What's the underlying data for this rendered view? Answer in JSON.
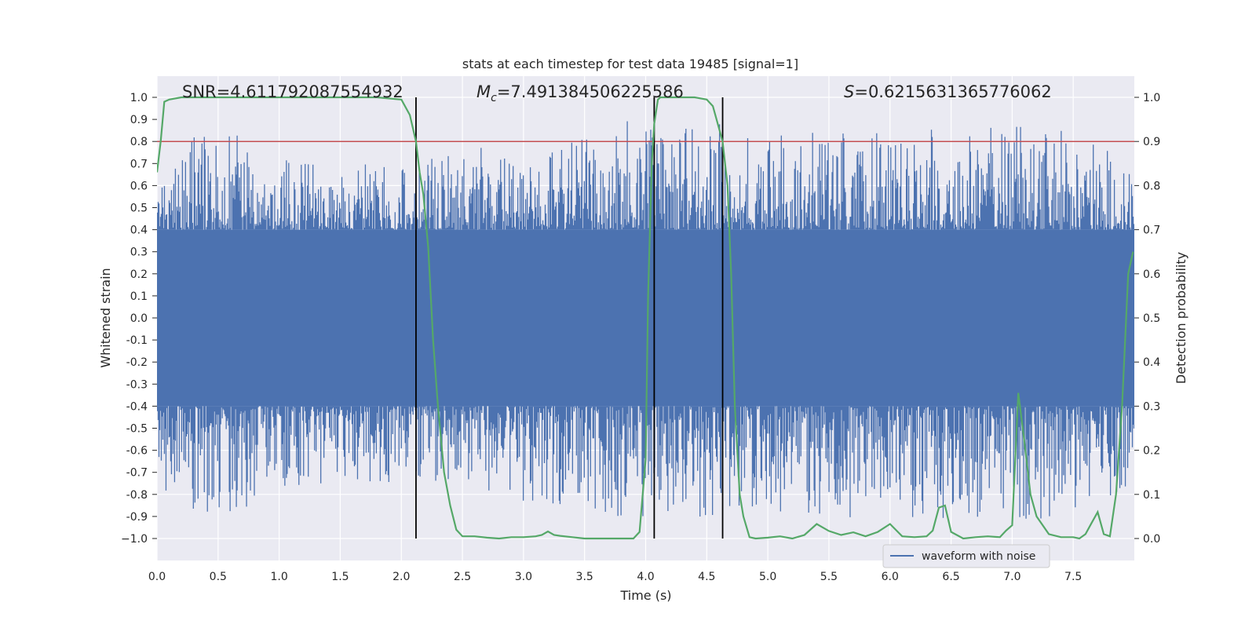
{
  "chart_data": {
    "type": "line",
    "title": "stats at each timestep for test data 19485 [signal=1]",
    "xlabel": "Time (s)",
    "ylabel": "Whitened strain",
    "ylabel_right": "Detection probability",
    "xlim": [
      0.0,
      8.0
    ],
    "ylim": [
      -1.1,
      1.1
    ],
    "ylim_right": [
      -0.05,
      1.05
    ],
    "x_ticks": [
      "0.0",
      "0.5",
      "1.0",
      "1.5",
      "2.0",
      "2.5",
      "3.0",
      "3.5",
      "4.0",
      "4.5",
      "5.0",
      "5.5",
      "6.0",
      "6.5",
      "7.0",
      "7.5"
    ],
    "y_ticks": [
      "1.0",
      "0.9",
      "0.8",
      "0.7",
      "0.6",
      "0.5",
      "0.4",
      "0.3",
      "0.2",
      "0.1",
      "0.0",
      "-0.1",
      "-0.2",
      "-0.3",
      "-0.4",
      "-0.5",
      "-0.6",
      "-0.7",
      "-0.8",
      "-0.9",
      "−1.0"
    ],
    "y_ticks_right": [
      "1.0",
      "0.9",
      "0.8",
      "0.7",
      "0.6",
      "0.5",
      "0.4",
      "0.3",
      "0.2",
      "0.1",
      "0.0"
    ],
    "grid": true,
    "annotations": {
      "snr": "SNR=4.611792087554932",
      "mc_symbol": "M",
      "mc_sub": "c",
      "mc_value": "=7.491384506225586",
      "s_symbol": "S",
      "s_value": "=0.6215631365776062"
    },
    "legend": {
      "label": "waveform with noise",
      "position": "lower-right"
    },
    "threshold": {
      "probability": 0.9,
      "color": "#c44e52"
    },
    "event_boundaries": [
      2.12,
      4.07,
      4.63
    ],
    "series": [
      {
        "name": "waveform with noise",
        "axis": "left",
        "color": "#4c72b0",
        "style": "dense_noise",
        "core_amplitude": 0.4,
        "peak_envelope": [
          [
            0.0,
            0.6
          ],
          [
            0.3,
            0.82
          ],
          [
            0.6,
            0.85
          ],
          [
            1.0,
            0.72
          ],
          [
            1.5,
            0.7
          ],
          [
            2.0,
            0.7
          ],
          [
            2.5,
            0.75
          ],
          [
            3.0,
            0.78
          ],
          [
            3.5,
            0.82
          ],
          [
            4.0,
            0.88
          ],
          [
            4.5,
            0.85
          ],
          [
            5.0,
            0.82
          ],
          [
            5.5,
            0.86
          ],
          [
            6.0,
            0.85
          ],
          [
            6.5,
            0.86
          ],
          [
            7.0,
            0.88
          ],
          [
            7.5,
            0.84
          ],
          [
            8.0,
            0.7
          ]
        ]
      },
      {
        "name": "Detection probability",
        "axis": "right",
        "color": "#55a868",
        "x": [
          0.0,
          0.03,
          0.06,
          0.1,
          0.2,
          0.5,
          1.0,
          1.5,
          1.8,
          2.0,
          2.07,
          2.12,
          2.15,
          2.18,
          2.22,
          2.26,
          2.3,
          2.35,
          2.4,
          2.45,
          2.5,
          2.6,
          2.7,
          2.8,
          2.9,
          3.0,
          3.1,
          3.15,
          3.2,
          3.25,
          3.3,
          3.4,
          3.5,
          3.6,
          3.7,
          3.8,
          3.9,
          3.95,
          4.0,
          4.02,
          4.05,
          4.07,
          4.1,
          4.12,
          4.15,
          4.2,
          4.3,
          4.4,
          4.5,
          4.55,
          4.6,
          4.63,
          4.67,
          4.7,
          4.73,
          4.77,
          4.8,
          4.85,
          4.9,
          5.0,
          5.1,
          5.2,
          5.3,
          5.4,
          5.5,
          5.6,
          5.7,
          5.8,
          5.9,
          6.0,
          6.1,
          6.2,
          6.3,
          6.35,
          6.4,
          6.45,
          6.5,
          6.6,
          6.7,
          6.8,
          6.9,
          6.95,
          7.0,
          7.05,
          7.1,
          7.15,
          7.2,
          7.3,
          7.4,
          7.5,
          7.55,
          7.6,
          7.65,
          7.7,
          7.75,
          7.8,
          7.85,
          7.9,
          7.95,
          7.99
        ],
        "values": [
          0.83,
          0.9,
          0.99,
          0.995,
          1.0,
          1.0,
          1.0,
          1.0,
          1.0,
          0.995,
          0.96,
          0.9,
          0.83,
          0.78,
          0.66,
          0.45,
          0.3,
          0.15,
          0.075,
          0.02,
          0.005,
          0.005,
          0.002,
          0.0,
          0.003,
          0.003,
          0.005,
          0.008,
          0.016,
          0.008,
          0.006,
          0.003,
          0.0,
          0.0,
          0.0,
          0.0,
          0.0,
          0.015,
          0.18,
          0.55,
          0.85,
          0.94,
          0.995,
          1.0,
          1.0,
          1.0,
          1.0,
          1.0,
          0.995,
          0.98,
          0.93,
          0.9,
          0.8,
          0.6,
          0.3,
          0.1,
          0.05,
          0.003,
          0.0,
          0.002,
          0.005,
          0.0,
          0.008,
          0.033,
          0.017,
          0.008,
          0.014,
          0.005,
          0.015,
          0.033,
          0.005,
          0.003,
          0.005,
          0.018,
          0.07,
          0.075,
          0.015,
          0.0,
          0.003,
          0.005,
          0.003,
          0.018,
          0.03,
          0.33,
          0.22,
          0.1,
          0.05,
          0.01,
          0.003,
          0.003,
          0.0,
          0.01,
          0.035,
          0.06,
          0.01,
          0.005,
          0.1,
          0.3,
          0.6,
          0.65
        ]
      }
    ]
  }
}
